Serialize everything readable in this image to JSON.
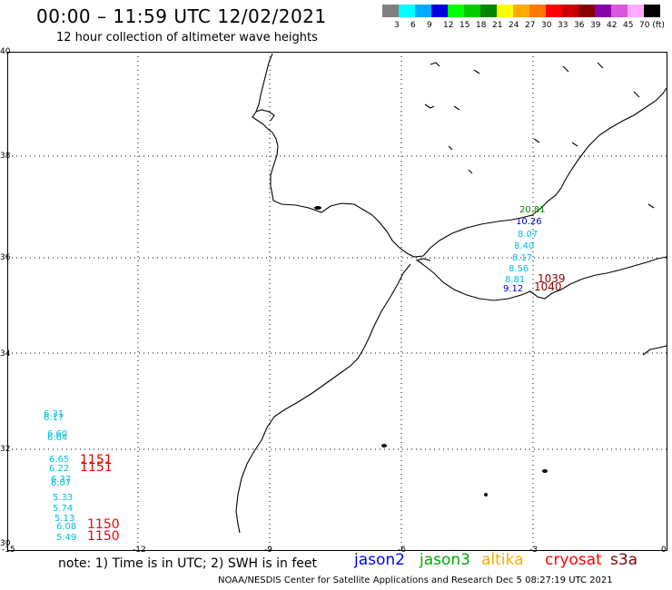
{
  "header": {
    "title": "00:00 – 11:59 UTC 12/02/2021",
    "subtitle": "12 hour collection of altimeter wave heights"
  },
  "color_scale": {
    "swatches": [
      "#808080",
      "#00ffff",
      "#00aaff",
      "#0000dd",
      "#00ff00",
      "#00cc00",
      "#008800",
      "#ffff00",
      "#ffaa00",
      "#ff7700",
      "#ff0000",
      "#cc0000",
      "#880000",
      "#8800aa",
      "#dd55dd",
      "#ffaaff",
      "#000000"
    ],
    "labels": [
      "3",
      "6",
      "9",
      "12",
      "15",
      "18",
      "21",
      "24",
      "27",
      "30",
      "33",
      "36",
      "39",
      "42",
      "45",
      "70 (ft)"
    ]
  },
  "axes": {
    "y_labels": [
      "40",
      "38",
      "36",
      "34",
      "32",
      "30"
    ],
    "x_labels": [
      "-15",
      "-12",
      "-9",
      "-6",
      "-3",
      "0"
    ]
  },
  "observations": [
    {
      "text": "6.31",
      "color": "#00c0e0"
    },
    {
      "text": "6.17",
      "color": "#00c0e0"
    },
    {
      "text": "6.60",
      "color": "#00c0e0"
    },
    {
      "text": "6.64",
      "color": "#00c0e0"
    },
    {
      "text": "6.65",
      "color": "#00c0e0"
    },
    {
      "text": "6.22",
      "color": "#00c0e0"
    },
    {
      "text": "6.37",
      "color": "#00c0e0"
    },
    {
      "text": "6.07",
      "color": "#00c0e0"
    },
    {
      "text": "5.33",
      "color": "#00c0e0"
    },
    {
      "text": "5.74",
      "color": "#00c0e0"
    },
    {
      "text": "5.13",
      "color": "#00c0e0"
    },
    {
      "text": "6.08",
      "color": "#00c0e0"
    },
    {
      "text": "5.49",
      "color": "#00c0e0"
    },
    {
      "text": "1151",
      "color": "#ee0000"
    },
    {
      "text": "1151",
      "color": "#ee0000"
    },
    {
      "text": "1150",
      "color": "#ee0000"
    },
    {
      "text": "1150",
      "color": "#ee0000"
    },
    {
      "text": "20.81",
      "color": "#008800"
    },
    {
      "text": "10.26",
      "color": "#0000cc"
    },
    {
      "text": "8.07",
      "color": "#00c0e0"
    },
    {
      "text": "8.40",
      "color": "#00c0e0"
    },
    {
      "text": "8.17",
      "color": "#00c0e0"
    },
    {
      "text": "8.56",
      "color": "#00c0e0"
    },
    {
      "text": "8.81",
      "color": "#00c0e0"
    },
    {
      "text": "9.12",
      "color": "#0000cc"
    },
    {
      "text": "1039",
      "color": "#880000"
    },
    {
      "text": "1040",
      "color": "#880000"
    }
  ],
  "footer": {
    "note": "note: 1) Time is in UTC; 2) SWH is in feet",
    "legend": [
      {
        "label": "jason2",
        "color": "#0000ff"
      },
      {
        "label": "jason3",
        "color": "#00aa00"
      },
      {
        "label": "altika",
        "color": "#ffaa00"
      },
      {
        "label": "cryosat",
        "color": "#ff0000"
      },
      {
        "label": "s3a",
        "color": "#880000"
      }
    ],
    "credit": "NOAA/NESDIS Center for Satellite Applications and Research    Dec  5 08:27:19 UTC 2021"
  }
}
